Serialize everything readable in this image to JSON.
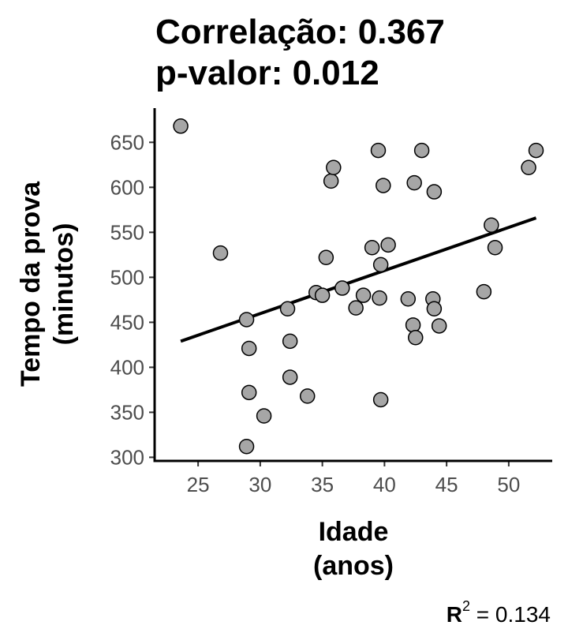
{
  "chart_data": {
    "type": "scatter",
    "title": "Correlação: 0.367",
    "subtitle": "p-valor: 0.012",
    "xlabel": [
      "Idade",
      "(anos)"
    ],
    "ylabel": [
      "Tempo da prova",
      "(minutos)"
    ],
    "xlim": [
      21.5,
      53.5
    ],
    "ylim": [
      296,
      688
    ],
    "xticks": [
      25,
      30,
      35,
      40,
      45,
      50
    ],
    "yticks": [
      300,
      350,
      400,
      450,
      500,
      550,
      600,
      650
    ],
    "grid": false,
    "points": [
      {
        "x": 23.6,
        "y": 668
      },
      {
        "x": 26.8,
        "y": 527
      },
      {
        "x": 28.9,
        "y": 453
      },
      {
        "x": 29.1,
        "y": 421
      },
      {
        "x": 29.1,
        "y": 372
      },
      {
        "x": 28.9,
        "y": 312
      },
      {
        "x": 30.3,
        "y": 346
      },
      {
        "x": 32.2,
        "y": 465
      },
      {
        "x": 32.4,
        "y": 429
      },
      {
        "x": 32.4,
        "y": 389
      },
      {
        "x": 33.8,
        "y": 368
      },
      {
        "x": 34.5,
        "y": 483
      },
      {
        "x": 35.0,
        "y": 480
      },
      {
        "x": 35.3,
        "y": 522
      },
      {
        "x": 35.7,
        "y": 607
      },
      {
        "x": 35.9,
        "y": 622
      },
      {
        "x": 36.6,
        "y": 488
      },
      {
        "x": 37.7,
        "y": 466
      },
      {
        "x": 38.3,
        "y": 480
      },
      {
        "x": 39.0,
        "y": 533
      },
      {
        "x": 39.5,
        "y": 641
      },
      {
        "x": 39.6,
        "y": 477
      },
      {
        "x": 39.7,
        "y": 514
      },
      {
        "x": 39.7,
        "y": 364
      },
      {
        "x": 39.9,
        "y": 602
      },
      {
        "x": 40.3,
        "y": 536
      },
      {
        "x": 41.9,
        "y": 476
      },
      {
        "x": 42.3,
        "y": 447
      },
      {
        "x": 42.4,
        "y": 605
      },
      {
        "x": 42.5,
        "y": 433
      },
      {
        "x": 43.0,
        "y": 641
      },
      {
        "x": 43.9,
        "y": 476
      },
      {
        "x": 44.0,
        "y": 595
      },
      {
        "x": 44.0,
        "y": 465
      },
      {
        "x": 44.4,
        "y": 446
      },
      {
        "x": 48.0,
        "y": 484
      },
      {
        "x": 48.6,
        "y": 558
      },
      {
        "x": 48.9,
        "y": 533
      },
      {
        "x": 51.6,
        "y": 622
      },
      {
        "x": 52.2,
        "y": 641
      }
    ],
    "trendline": {
      "x": [
        23.6,
        52.2
      ],
      "y": [
        429,
        566
      ]
    },
    "annotation": {
      "prefix": "R",
      "sup": "2",
      "suffix": " = 0.134"
    }
  }
}
